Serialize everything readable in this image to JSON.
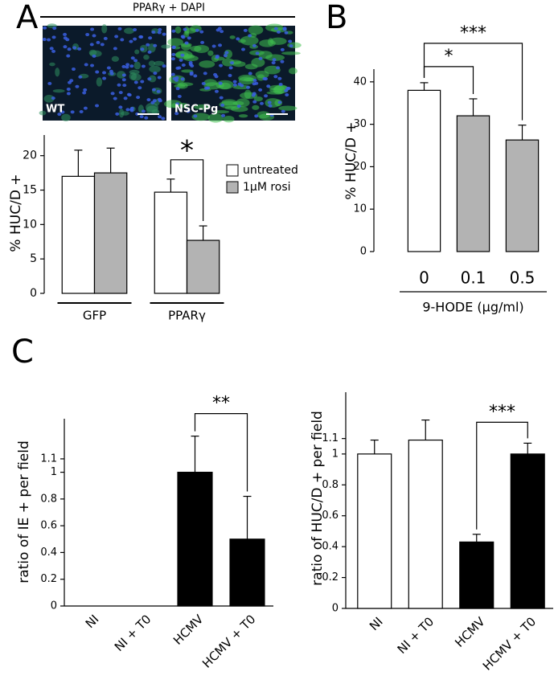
{
  "figure": {
    "panel_labels": [
      "A",
      "B",
      "C"
    ],
    "image_title": "PPARγ + DAPI",
    "image_labels": [
      "WT",
      "NSC-Pg"
    ]
  },
  "chart_data": [
    {
      "type": "bar",
      "ylabel": "% HUC/D +",
      "categories": [
        "GFP",
        "PPARγ"
      ],
      "series": [
        {
          "name": "untreated",
          "color": "#ffffff",
          "values": [
            17,
            14.7
          ],
          "errors": [
            3.8,
            1.9
          ]
        },
        {
          "name": "1µM rosi",
          "color": "#b3b3b3",
          "values": [
            17.5,
            7.7
          ],
          "errors": [
            3.6,
            2.1
          ]
        }
      ],
      "ylim": [
        0,
        23
      ],
      "yticks": [
        0,
        5,
        10,
        15,
        20
      ],
      "annotations": [
        {
          "text": "*",
          "category": "PPARγ"
        }
      ]
    },
    {
      "type": "bar",
      "ylabel": "% HUC/D +",
      "xlabel": "9-HODE (µg/ml)",
      "categories": [
        "0",
        "0.1",
        "0.5"
      ],
      "values": [
        38,
        32,
        26.3
      ],
      "errors": [
        1.8,
        4,
        3.5
      ],
      "colors": [
        "#ffffff",
        "#b3b3b3",
        "#b3b3b3"
      ],
      "ylim": [
        0,
        43
      ],
      "yticks": [
        0,
        10,
        20,
        30,
        40
      ],
      "annotations": [
        {
          "text": "*",
          "between": [
            "0",
            "0.1"
          ]
        },
        {
          "text": "***",
          "between": [
            "0",
            "0.5"
          ]
        }
      ]
    },
    {
      "type": "bar",
      "ylabel": "ratio of IE + per field",
      "categories": [
        "NI",
        "NI + T0",
        "HCMV",
        "HCMV + T0"
      ],
      "values": [
        0,
        0,
        1,
        0.5
      ],
      "errors": [
        null,
        null,
        0.27,
        0.32
      ],
      "colors": [
        "#ffffff",
        "#ffffff",
        "#000000",
        "#000000"
      ],
      "ylim": [
        0,
        1.4
      ],
      "yticks": [
        0,
        0.2,
        0.4,
        0.6,
        0.8,
        1,
        1.1
      ],
      "annotations": [
        {
          "text": "**",
          "between": [
            "HCMV",
            "HCMV + T0"
          ]
        }
      ]
    },
    {
      "type": "bar",
      "ylabel": "ratio of HUC/D + per field",
      "categories": [
        "NI",
        "NI + T0",
        "HCMV",
        "HCMV + T0"
      ],
      "values": [
        1,
        1.09,
        0.43,
        1
      ],
      "errors": [
        0.09,
        0.13,
        0.05,
        0.07
      ],
      "colors": [
        "#ffffff",
        "#ffffff",
        "#000000",
        "#000000"
      ],
      "ylim": [
        0,
        1.4
      ],
      "yticks": [
        0,
        0.2,
        0.4,
        0.6,
        0.8,
        1,
        1.1
      ],
      "annotations": [
        {
          "text": "***",
          "between": [
            "HCMV",
            "HCMV + T0"
          ]
        }
      ]
    }
  ]
}
